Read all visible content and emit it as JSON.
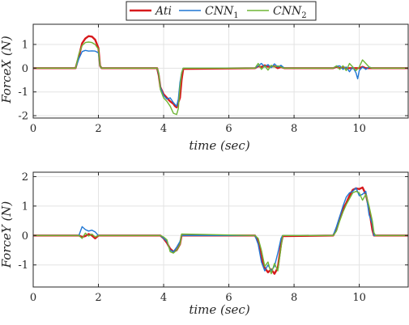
{
  "legend": {
    "placement": "top-center",
    "entries": [
      {
        "text": "Ati",
        "sub": "",
        "color": "#d7191c"
      },
      {
        "text": "CNN",
        "sub": "1",
        "color": "#1f77d4"
      },
      {
        "text": "CNN",
        "sub": "2",
        "color": "#6fb535"
      }
    ]
  },
  "chart_data": [
    {
      "type": "line",
      "xlabel": "time (sec)",
      "ylabel": "ForceX (N)",
      "xlim": [
        0,
        11.5
      ],
      "ylim": [
        -2.1,
        1.85
      ],
      "xticks": [
        0,
        2,
        4,
        6,
        8,
        10
      ],
      "yticks": [
        -2,
        -1,
        0,
        1
      ],
      "grid": true,
      "series": [
        {
          "name": "Ati",
          "color": "#d7191c",
          "width": 2.4,
          "points": [
            [
              0,
              0
            ],
            [
              1.3,
              0
            ],
            [
              1.4,
              0.5
            ],
            [
              1.5,
              1.05
            ],
            [
              1.6,
              1.25
            ],
            [
              1.7,
              1.35
            ],
            [
              1.8,
              1.33
            ],
            [
              1.9,
              1.2
            ],
            [
              2.0,
              0.85
            ],
            [
              2.05,
              0.1
            ],
            [
              2.1,
              0
            ],
            [
              3.8,
              0
            ],
            [
              3.85,
              -0.3
            ],
            [
              3.9,
              -0.8
            ],
            [
              4.0,
              -1.1
            ],
            [
              4.1,
              -1.25
            ],
            [
              4.2,
              -1.4
            ],
            [
              4.3,
              -1.5
            ],
            [
              4.35,
              -1.6
            ],
            [
              4.4,
              -1.65
            ],
            [
              4.5,
              -1.25
            ],
            [
              4.55,
              -0.5
            ],
            [
              4.6,
              -0.03
            ],
            [
              6.8,
              0
            ],
            [
              6.9,
              0.08
            ],
            [
              7.0,
              0.05
            ],
            [
              7.1,
              0.12
            ],
            [
              7.2,
              0.06
            ],
            [
              7.4,
              0.08
            ],
            [
              7.5,
              0
            ],
            [
              7.6,
              0.05
            ],
            [
              7.7,
              0
            ],
            [
              9.2,
              0
            ],
            [
              9.3,
              0.06
            ],
            [
              9.4,
              0
            ],
            [
              9.5,
              0.04
            ],
            [
              9.6,
              0
            ],
            [
              10.0,
              0
            ],
            [
              10.1,
              0.06
            ],
            [
              10.2,
              0
            ],
            [
              11.5,
              0
            ]
          ]
        },
        {
          "name": "CNN1",
          "color": "#1f77d4",
          "width": 1.4,
          "points": [
            [
              0,
              0
            ],
            [
              1.3,
              0
            ],
            [
              1.4,
              0.4
            ],
            [
              1.5,
              0.7
            ],
            [
              1.6,
              0.75
            ],
            [
              1.7,
              0.72
            ],
            [
              1.8,
              0.73
            ],
            [
              1.9,
              0.72
            ],
            [
              2.0,
              0.65
            ],
            [
              2.05,
              0.1
            ],
            [
              2.1,
              0
            ],
            [
              3.8,
              0
            ],
            [
              3.85,
              -0.25
            ],
            [
              3.9,
              -0.8
            ],
            [
              4.0,
              -1.15
            ],
            [
              4.1,
              -1.3
            ],
            [
              4.2,
              -1.25
            ],
            [
              4.3,
              -1.45
            ],
            [
              4.4,
              -1.6
            ],
            [
              4.45,
              -1.3
            ],
            [
              4.5,
              -0.6
            ],
            [
              4.55,
              -0.2
            ],
            [
              4.6,
              0
            ],
            [
              6.8,
              0
            ],
            [
              6.9,
              0.1
            ],
            [
              7.0,
              0.2
            ],
            [
              7.1,
              0.05
            ],
            [
              7.2,
              0.15
            ],
            [
              7.3,
              0.02
            ],
            [
              7.4,
              0.18
            ],
            [
              7.5,
              0.05
            ],
            [
              7.6,
              0.12
            ],
            [
              7.7,
              0
            ],
            [
              9.2,
              0
            ],
            [
              9.3,
              0.08
            ],
            [
              9.4,
              0.1
            ],
            [
              9.5,
              -0.05
            ],
            [
              9.6,
              0.05
            ],
            [
              9.7,
              -0.15
            ],
            [
              9.8,
              0.05
            ],
            [
              9.9,
              -0.2
            ],
            [
              9.95,
              -0.45
            ],
            [
              10.0,
              -0.1
            ],
            [
              10.1,
              0.05
            ],
            [
              10.2,
              -0.05
            ],
            [
              10.3,
              0.05
            ],
            [
              10.4,
              0
            ],
            [
              11.5,
              0
            ]
          ]
        },
        {
          "name": "CNN2",
          "color": "#6fb535",
          "width": 1.4,
          "points": [
            [
              0,
              0
            ],
            [
              1.3,
              0
            ],
            [
              1.4,
              0.6
            ],
            [
              1.5,
              0.95
            ],
            [
              1.6,
              1.08
            ],
            [
              1.7,
              1.1
            ],
            [
              1.8,
              1.08
            ],
            [
              1.9,
              1.0
            ],
            [
              2.0,
              0.8
            ],
            [
              2.05,
              0.1
            ],
            [
              2.1,
              0
            ],
            [
              3.8,
              0
            ],
            [
              3.85,
              -0.2
            ],
            [
              3.9,
              -0.9
            ],
            [
              4.0,
              -1.25
            ],
            [
              4.1,
              -1.4
            ],
            [
              4.2,
              -1.6
            ],
            [
              4.3,
              -1.9
            ],
            [
              4.4,
              -1.95
            ],
            [
              4.45,
              -1.7
            ],
            [
              4.5,
              -0.8
            ],
            [
              4.55,
              -0.2
            ],
            [
              4.6,
              0
            ],
            [
              6.8,
              0
            ],
            [
              6.9,
              0.2
            ],
            [
              7.0,
              -0.05
            ],
            [
              7.1,
              0.1
            ],
            [
              7.2,
              -0.08
            ],
            [
              7.3,
              0.12
            ],
            [
              7.4,
              0.05
            ],
            [
              7.5,
              0.1
            ],
            [
              7.6,
              0.05
            ],
            [
              7.7,
              0
            ],
            [
              9.2,
              0
            ],
            [
              9.3,
              0.1
            ],
            [
              9.4,
              -0.05
            ],
            [
              9.5,
              0.1
            ],
            [
              9.6,
              -0.1
            ],
            [
              9.7,
              0.2
            ],
            [
              9.8,
              0.05
            ],
            [
              9.9,
              -0.1
            ],
            [
              10.0,
              0.05
            ],
            [
              10.1,
              0.35
            ],
            [
              10.2,
              0.2
            ],
            [
              10.3,
              0.05
            ],
            [
              10.4,
              0
            ],
            [
              11.5,
              0
            ]
          ]
        }
      ]
    },
    {
      "type": "line",
      "xlabel": "time (sec)",
      "ylabel": "ForceY (N)",
      "xlim": [
        0,
        11.5
      ],
      "ylim": [
        -1.75,
        2.15
      ],
      "xticks": [
        0,
        2,
        4,
        6,
        8,
        10
      ],
      "yticks": [
        -1,
        0,
        1,
        2
      ],
      "grid": true,
      "series": [
        {
          "name": "Ati",
          "color": "#d7191c",
          "width": 2.4,
          "points": [
            [
              0,
              0
            ],
            [
              1.4,
              0
            ],
            [
              1.5,
              -0.05
            ],
            [
              1.6,
              -0.02
            ],
            [
              1.7,
              0.05
            ],
            [
              1.8,
              0
            ],
            [
              1.9,
              -0.1
            ],
            [
              2.0,
              0
            ],
            [
              3.9,
              0
            ],
            [
              4.0,
              -0.1
            ],
            [
              4.1,
              -0.25
            ],
            [
              4.2,
              -0.45
            ],
            [
              4.3,
              -0.55
            ],
            [
              4.4,
              -0.5
            ],
            [
              4.5,
              -0.3
            ],
            [
              4.55,
              0
            ],
            [
              6.8,
              0
            ],
            [
              6.9,
              -0.2
            ],
            [
              7.0,
              -0.75
            ],
            [
              7.1,
              -1.1
            ],
            [
              7.2,
              -1.25
            ],
            [
              7.3,
              -1.15
            ],
            [
              7.4,
              -1.3
            ],
            [
              7.5,
              -1.1
            ],
            [
              7.6,
              -0.3
            ],
            [
              7.65,
              -0.02
            ],
            [
              9.2,
              0
            ],
            [
              9.3,
              0.2
            ],
            [
              9.4,
              0.6
            ],
            [
              9.5,
              0.9
            ],
            [
              9.6,
              1.1
            ],
            [
              9.7,
              1.35
            ],
            [
              9.8,
              1.55
            ],
            [
              9.9,
              1.6
            ],
            [
              10.0,
              1.58
            ],
            [
              10.1,
              1.63
            ],
            [
              10.2,
              1.4
            ],
            [
              10.3,
              0.9
            ],
            [
              10.4,
              0.2
            ],
            [
              10.45,
              0
            ],
            [
              11.5,
              0
            ]
          ]
        },
        {
          "name": "CNN1",
          "color": "#1f77d4",
          "width": 1.4,
          "points": [
            [
              0,
              0
            ],
            [
              1.4,
              0
            ],
            [
              1.5,
              0.3
            ],
            [
              1.6,
              0.2
            ],
            [
              1.7,
              0.15
            ],
            [
              1.8,
              0.18
            ],
            [
              1.9,
              0.12
            ],
            [
              2.0,
              0
            ],
            [
              3.9,
              0
            ],
            [
              4.0,
              -0.1
            ],
            [
              4.1,
              -0.2
            ],
            [
              4.2,
              -0.5
            ],
            [
              4.3,
              -0.55
            ],
            [
              4.4,
              -0.4
            ],
            [
              4.5,
              -0.2
            ],
            [
              4.55,
              0
            ],
            [
              6.8,
              0
            ],
            [
              6.9,
              -0.3
            ],
            [
              7.0,
              -0.9
            ],
            [
              7.1,
              -1.2
            ],
            [
              7.2,
              -1.0
            ],
            [
              7.3,
              -1.2
            ],
            [
              7.4,
              -1.05
            ],
            [
              7.5,
              -0.6
            ],
            [
              7.6,
              -0.1
            ],
            [
              7.65,
              0
            ],
            [
              9.2,
              0
            ],
            [
              9.3,
              0.3
            ],
            [
              9.4,
              0.65
            ],
            [
              9.5,
              1.0
            ],
            [
              9.6,
              1.3
            ],
            [
              9.7,
              1.45
            ],
            [
              9.8,
              1.5
            ],
            [
              9.9,
              1.62
            ],
            [
              10.0,
              1.35
            ],
            [
              10.1,
              1.4
            ],
            [
              10.2,
              1.5
            ],
            [
              10.3,
              0.7
            ],
            [
              10.4,
              0.4
            ],
            [
              10.45,
              0
            ],
            [
              11.5,
              0
            ]
          ]
        },
        {
          "name": "CNN2",
          "color": "#6fb535",
          "width": 1.4,
          "points": [
            [
              0,
              0
            ],
            [
              1.4,
              0
            ],
            [
              1.5,
              -0.1
            ],
            [
              1.6,
              0.08
            ],
            [
              1.7,
              -0.02
            ],
            [
              1.8,
              0.05
            ],
            [
              1.9,
              -0.05
            ],
            [
              2.0,
              0
            ],
            [
              3.9,
              0
            ],
            [
              4.0,
              -0.05
            ],
            [
              4.1,
              -0.15
            ],
            [
              4.2,
              -0.55
            ],
            [
              4.3,
              -0.6
            ],
            [
              4.4,
              -0.5
            ],
            [
              4.5,
              -0.3
            ],
            [
              4.55,
              0.05
            ],
            [
              6.8,
              0
            ],
            [
              6.9,
              -0.1
            ],
            [
              7.0,
              -0.5
            ],
            [
              7.1,
              -1.05
            ],
            [
              7.2,
              -0.9
            ],
            [
              7.3,
              -1.3
            ],
            [
              7.4,
              -0.95
            ],
            [
              7.5,
              -1.2
            ],
            [
              7.6,
              -0.4
            ],
            [
              7.65,
              0
            ],
            [
              9.2,
              0
            ],
            [
              9.3,
              0.15
            ],
            [
              9.4,
              0.5
            ],
            [
              9.5,
              0.8
            ],
            [
              9.6,
              1.05
            ],
            [
              9.7,
              1.25
            ],
            [
              9.8,
              1.45
            ],
            [
              9.9,
              1.5
            ],
            [
              10.0,
              1.45
            ],
            [
              10.1,
              1.2
            ],
            [
              10.2,
              1.4
            ],
            [
              10.3,
              1.0
            ],
            [
              10.4,
              0.5
            ],
            [
              10.45,
              0.1
            ],
            [
              10.5,
              0
            ],
            [
              11.5,
              0
            ]
          ]
        }
      ]
    }
  ]
}
